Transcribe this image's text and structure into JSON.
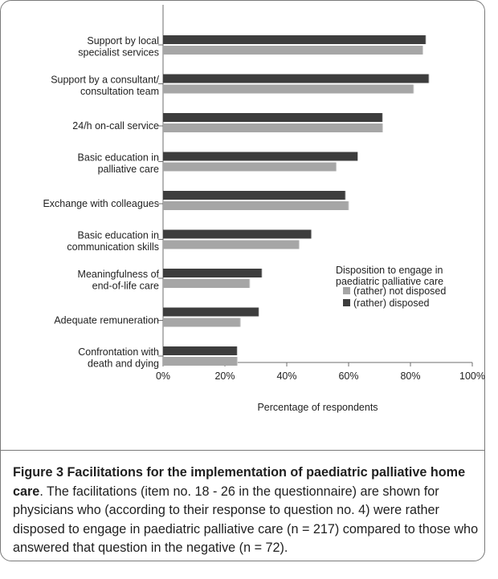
{
  "chart_data": {
    "type": "bar",
    "orientation": "horizontal",
    "categories": [
      [
        "Support by local",
        "specialist services"
      ],
      [
        "Support by a consultant/",
        "consultation team"
      ],
      [
        "24/h on-call service"
      ],
      [
        "Basic education in",
        "palliative care"
      ],
      [
        "Exchange with colleagues"
      ],
      [
        "Basic education in",
        "communication skills"
      ],
      [
        "Meaningfulness of",
        "end-of-life care"
      ],
      [
        "Adequate remuneration"
      ],
      [
        "Confrontation with",
        "death and dying"
      ]
    ],
    "series": [
      {
        "name": "(rather) disposed",
        "color": "#3d3d3d",
        "values": [
          85,
          86,
          71,
          63,
          59,
          48,
          32,
          31,
          24
        ]
      },
      {
        "name": "(rather) not disposed",
        "color": "#a6a6a6",
        "values": [
          84,
          81,
          71,
          56,
          60,
          44,
          28,
          25,
          24
        ]
      }
    ],
    "xlabel": "Percentage of respondents",
    "xlim": [
      0,
      100
    ],
    "xticks": [
      "0%",
      "20%",
      "40%",
      "60%",
      "80%",
      "100%"
    ],
    "xtick_values": [
      0,
      20,
      40,
      60,
      80,
      100
    ],
    "legend": {
      "title": [
        "Disposition to engage in",
        "paediatric palliative care"
      ],
      "entries": [
        "(rather) not disposed",
        "(rather) disposed"
      ],
      "placement": "right"
    },
    "grid": false
  },
  "caption": {
    "title": "Figure 3 Facilitations for the implementation of paediatric palliative home care",
    "text": ". The facilitations (item no. 18 - 26 in the questionnaire) are shown for physicians who (according to their response to question no. 4) were rather disposed to engage in paediatric palliative care (n = 217) compared to those who answered that question in the negative (n = 72)."
  }
}
